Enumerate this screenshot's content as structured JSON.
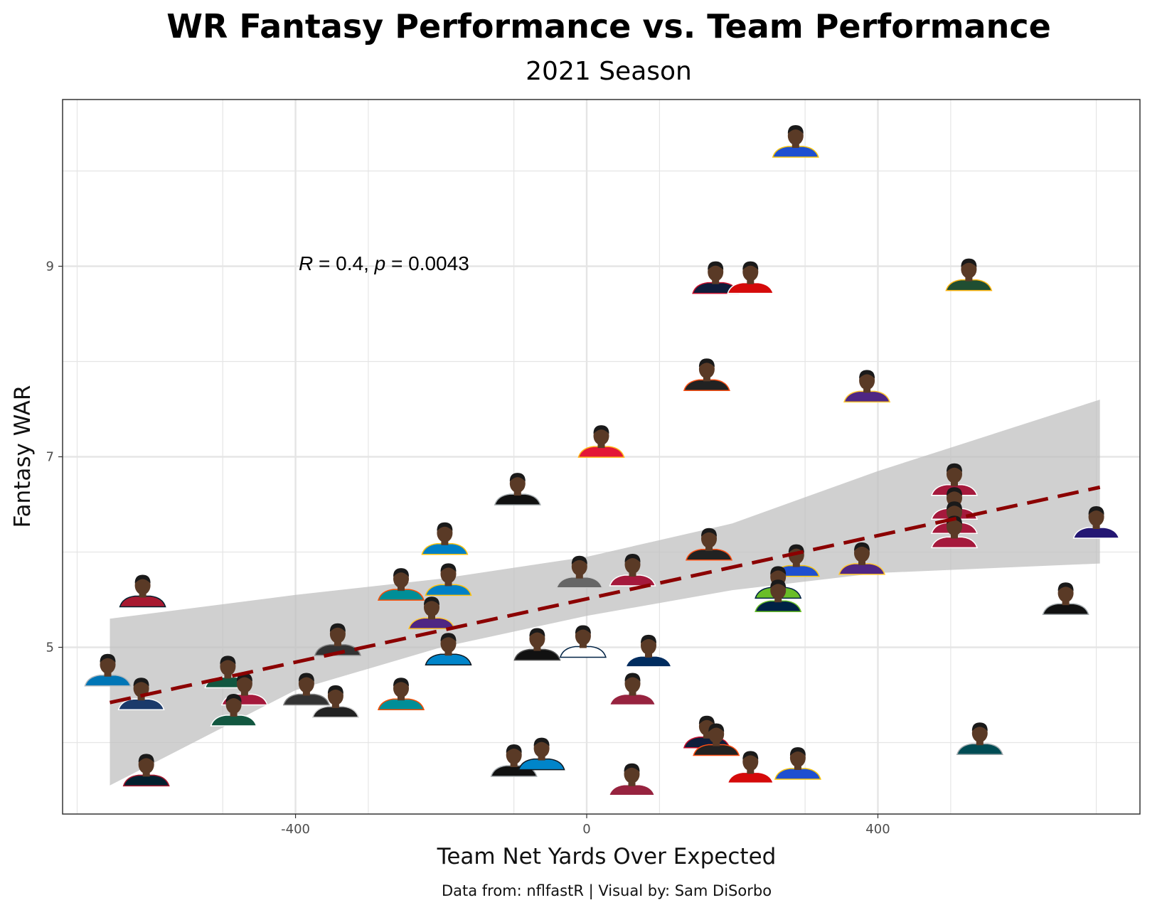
{
  "chart_data": {
    "type": "scatter",
    "title": "WR Fantasy Performance vs. Team Performance",
    "subtitle": "2021 Season",
    "xlabel": "Team Net Yards Over Expected",
    "ylabel": "Fantasy WAR",
    "caption": "Data from: nflfastR | Visual by: Sam DiSorbo",
    "xlim": [
      -720,
      760
    ],
    "ylim": [
      3.25,
      10.75
    ],
    "x_ticks": [
      -400,
      0,
      400
    ],
    "x_tick_labels": [
      "-400",
      "0",
      "400"
    ],
    "y_ticks": [
      5,
      7,
      9
    ],
    "y_tick_labels": [
      "5",
      "7",
      "9"
    ],
    "annotation": {
      "r_symbol": "R",
      "r_value": " = 0.4, ",
      "p_symbol": "p",
      "p_value": " = 0.0043"
    },
    "trend_line": {
      "x": [
        -655,
        705
      ],
      "y": [
        4.42,
        6.68
      ]
    },
    "confidence_band": {
      "x": [
        -655,
        -400,
        -200,
        0,
        200,
        400,
        705
      ],
      "upper": [
        5.3,
        5.55,
        5.72,
        5.95,
        6.3,
        6.85,
        7.6
      ],
      "lower": [
        3.55,
        4.55,
        5.0,
        5.33,
        5.6,
        5.78,
        5.88
      ]
    },
    "points": [
      {
        "x": 287,
        "y": 10.25,
        "jersey": "#1e4fd0",
        "trim": "#f4c20d"
      },
      {
        "x": 177,
        "y": 8.82,
        "jersey": "#0f1d3b",
        "trim": "#c8102e"
      },
      {
        "x": 225,
        "y": 8.82,
        "jersey": "#d50a0a",
        "trim": "#ffffff"
      },
      {
        "x": 525,
        "y": 8.85,
        "jersey": "#204e32",
        "trim": "#ffb612"
      },
      {
        "x": 165,
        "y": 7.8,
        "jersey": "#222222",
        "trim": "#fb4f14"
      },
      {
        "x": 385,
        "y": 7.68,
        "jersey": "#4f2683",
        "trim": "#ffc62f"
      },
      {
        "x": 20,
        "y": 7.1,
        "jersey": "#e31837",
        "trim": "#ffb81c"
      },
      {
        "x": -95,
        "y": 6.6,
        "jersey": "#111111",
        "trim": "#a5acaf"
      },
      {
        "x": 505,
        "y": 6.7,
        "jersey": "#a5193c",
        "trim": "#ffffff"
      },
      {
        "x": 505,
        "y": 6.45,
        "jersey": "#a5193c",
        "trim": "#ffffff"
      },
      {
        "x": 505,
        "y": 6.3,
        "jersey": "#a5193c",
        "trim": "#ffffff"
      },
      {
        "x": 505,
        "y": 6.15,
        "jersey": "#a5193c",
        "trim": "#ffffff"
      },
      {
        "x": 700,
        "y": 6.25,
        "jersey": "#241773",
        "trim": "#ffffff"
      },
      {
        "x": -195,
        "y": 6.08,
        "jersey": "#0080c6",
        "trim": "#ffc20e"
      },
      {
        "x": 168,
        "y": 6.02,
        "jersey": "#222222",
        "trim": "#fb4f14"
      },
      {
        "x": 288,
        "y": 5.85,
        "jersey": "#1e4fd0",
        "trim": "#f4c20d"
      },
      {
        "x": 378,
        "y": 5.87,
        "jersey": "#4f2683",
        "trim": "#ffc62f"
      },
      {
        "x": -10,
        "y": 5.73,
        "jersey": "#666666",
        "trim": "#cccccc"
      },
      {
        "x": 63,
        "y": 5.75,
        "jersey": "#a5193c",
        "trim": "#ffffff"
      },
      {
        "x": -255,
        "y": 5.6,
        "jersey": "#008e97",
        "trim": "#fc4c02"
      },
      {
        "x": -190,
        "y": 5.65,
        "jersey": "#0080c6",
        "trim": "#ffc20e"
      },
      {
        "x": 263,
        "y": 5.62,
        "jersey": "#69be28",
        "trim": "#002244"
      },
      {
        "x": 263,
        "y": 5.48,
        "jersey": "#002244",
        "trim": "#69be28"
      },
      {
        "x": 658,
        "y": 5.45,
        "jersey": "#111111",
        "trim": "#a5acaf"
      },
      {
        "x": -610,
        "y": 5.53,
        "jersey": "#a71930",
        "trim": "#03202f"
      },
      {
        "x": -213,
        "y": 5.3,
        "jersey": "#4f2683",
        "trim": "#ffc62f"
      },
      {
        "x": -342,
        "y": 5.02,
        "jersey": "#333333",
        "trim": "#888888"
      },
      {
        "x": -190,
        "y": 4.92,
        "jersey": "#0085ca",
        "trim": "#101820"
      },
      {
        "x": -68,
        "y": 4.97,
        "jersey": "#111111",
        "trim": "#555555"
      },
      {
        "x": -5,
        "y": 5.0,
        "jersey": "#ffffff",
        "trim": "#002244"
      },
      {
        "x": 85,
        "y": 4.9,
        "jersey": "#002c5f",
        "trim": "#ffffff"
      },
      {
        "x": -658,
        "y": 4.7,
        "jersey": "#0076b6",
        "trim": "#b0b7bc"
      },
      {
        "x": -493,
        "y": 4.68,
        "jersey": "#125740",
        "trim": "#ffffff"
      },
      {
        "x": -612,
        "y": 4.45,
        "jersey": "#1b3a6b",
        "trim": "#ffffff"
      },
      {
        "x": -470,
        "y": 4.5,
        "jersey": "#a5193c",
        "trim": "#ffffff"
      },
      {
        "x": -385,
        "y": 4.5,
        "jersey": "#333333",
        "trim": "#888888"
      },
      {
        "x": -345,
        "y": 4.37,
        "jersey": "#222222",
        "trim": "#cccccc"
      },
      {
        "x": -255,
        "y": 4.45,
        "jersey": "#008e97",
        "trim": "#fc4c02"
      },
      {
        "x": -485,
        "y": 4.28,
        "jersey": "#125740",
        "trim": "#ffffff"
      },
      {
        "x": 63,
        "y": 4.5,
        "jersey": "#97233f",
        "trim": "#ffffff"
      },
      {
        "x": 165,
        "y": 4.05,
        "jersey": "#0f1d3b",
        "trim": "#c8102e"
      },
      {
        "x": 178,
        "y": 3.97,
        "jersey": "#222222",
        "trim": "#fb4f14"
      },
      {
        "x": 540,
        "y": 3.98,
        "jersey": "#004c54",
        "trim": "#a5acaf"
      },
      {
        "x": -605,
        "y": 3.65,
        "jersey": "#03202f",
        "trim": "#a71930"
      },
      {
        "x": -100,
        "y": 3.75,
        "jersey": "#111111",
        "trim": "#a5acaf"
      },
      {
        "x": -62,
        "y": 3.82,
        "jersey": "#0085ca",
        "trim": "#101820"
      },
      {
        "x": 225,
        "y": 3.68,
        "jersey": "#d50a0a",
        "trim": "#ffffff"
      },
      {
        "x": 290,
        "y": 3.72,
        "jersey": "#1e4fd0",
        "trim": "#f4c20d"
      },
      {
        "x": 62,
        "y": 3.55,
        "jersey": "#97233f",
        "trim": "#ffffff"
      }
    ],
    "colors": {
      "trend": "#8b0000",
      "band": "#bebebe",
      "grid": "#e5e5e5",
      "panel_border": "#333333",
      "skin": "#5a3a26",
      "hair": "#1a1a1a"
    }
  }
}
